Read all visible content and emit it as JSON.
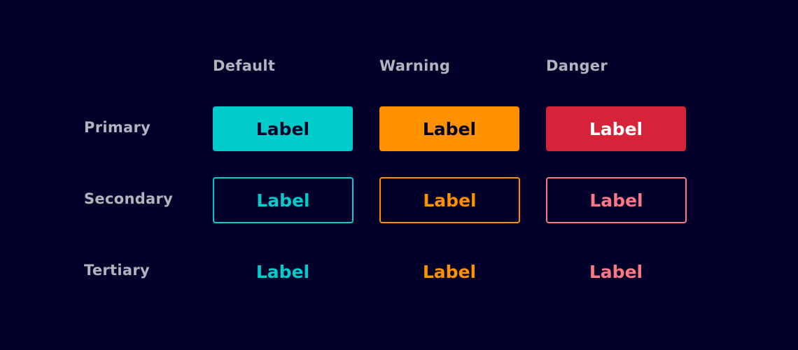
{
  "columns": [
    "Default",
    "Warning",
    "Danger"
  ],
  "rows": [
    "Primary",
    "Secondary",
    "Tertiary"
  ],
  "button_label": "Label",
  "colors": {
    "background": "#000028",
    "default": "#00cccc",
    "warning": "#ff9000",
    "danger": "#d72339",
    "danger_light": "#ff7687",
    "label_text": "#b3b3be",
    "dark_text": "#000028"
  }
}
